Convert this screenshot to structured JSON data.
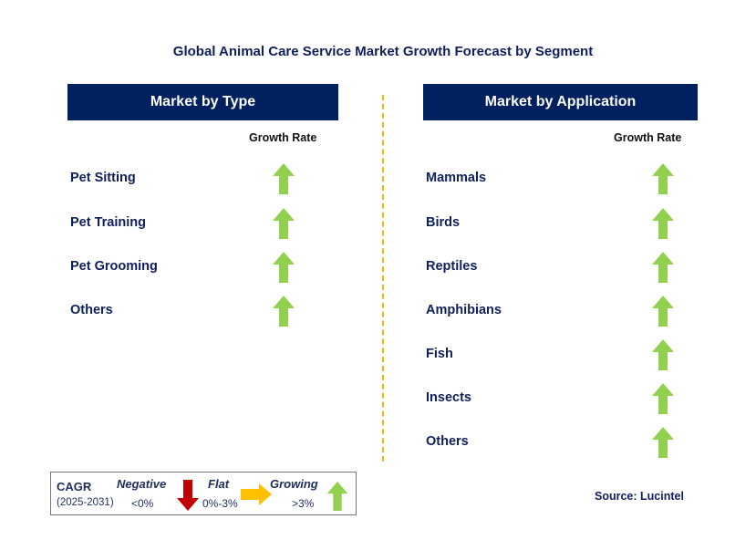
{
  "title": "Global Animal Care Service Market Growth Forecast by Segment",
  "colors": {
    "header_bg": "#002060",
    "growing": "#92d050",
    "flat": "#ffc000",
    "negative": "#c00000",
    "divider": "#f5b800"
  },
  "left": {
    "header": "Market by Type",
    "column_label": "Growth Rate",
    "items": [
      {
        "label": "Pet Sitting",
        "trend": "growing"
      },
      {
        "label": "Pet Training",
        "trend": "growing"
      },
      {
        "label": "Pet Grooming",
        "trend": "growing"
      },
      {
        "label": "Others",
        "trend": "growing"
      }
    ]
  },
  "right": {
    "header": "Market by Application",
    "column_label": "Growth Rate",
    "items": [
      {
        "label": "Mammals",
        "trend": "growing"
      },
      {
        "label": "Birds",
        "trend": "growing"
      },
      {
        "label": "Reptiles",
        "trend": "growing"
      },
      {
        "label": "Amphibians",
        "trend": "growing"
      },
      {
        "label": "Fish",
        "trend": "growing"
      },
      {
        "label": "Insects",
        "trend": "growing"
      },
      {
        "label": "Others",
        "trend": "growing"
      }
    ]
  },
  "legend": {
    "cagr": "CAGR",
    "period": "(2025-2031)",
    "negative": "Negative",
    "negative_range": "<0%",
    "flat": "Flat",
    "flat_range": "0%-3%",
    "growing": "Growing",
    "growing_range": ">3%"
  },
  "source": "Source: Lucintel"
}
